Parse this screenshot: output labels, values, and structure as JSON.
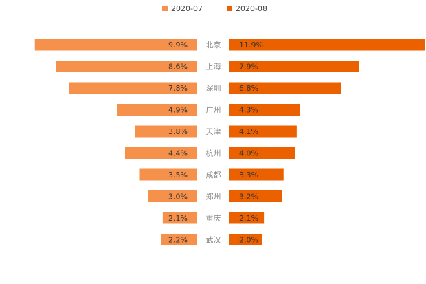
{
  "chart_data": {
    "type": "bar",
    "layout": "butterfly",
    "title": "",
    "categories": [
      "北京",
      "上海",
      "深圳",
      "广州",
      "天津",
      "杭州",
      "成都",
      "郑州",
      "重庆",
      "武汉"
    ],
    "series": [
      {
        "name": "2020-07",
        "color": "#F5914A",
        "values": [
          9.9,
          8.6,
          7.8,
          4.9,
          3.8,
          4.4,
          3.5,
          3.0,
          2.1,
          2.2
        ],
        "labels": [
          "9.9%",
          "8.6%",
          "7.8%",
          "4.9%",
          "3.8%",
          "4.4%",
          "3.5%",
          "3.0%",
          "2.1%",
          "2.2%"
        ]
      },
      {
        "name": "2020-08",
        "color": "#EB6100",
        "values": [
          11.9,
          7.9,
          6.8,
          4.3,
          4.1,
          4.0,
          3.3,
          3.2,
          2.1,
          2.0
        ],
        "labels": [
          "11.9%",
          "7.9%",
          "6.8%",
          "4.3%",
          "4.1%",
          "4.0%",
          "3.3%",
          "3.2%",
          "2.1%",
          "2.0%"
        ]
      }
    ],
    "value_unit": "%",
    "legend_position": "top-center"
  }
}
